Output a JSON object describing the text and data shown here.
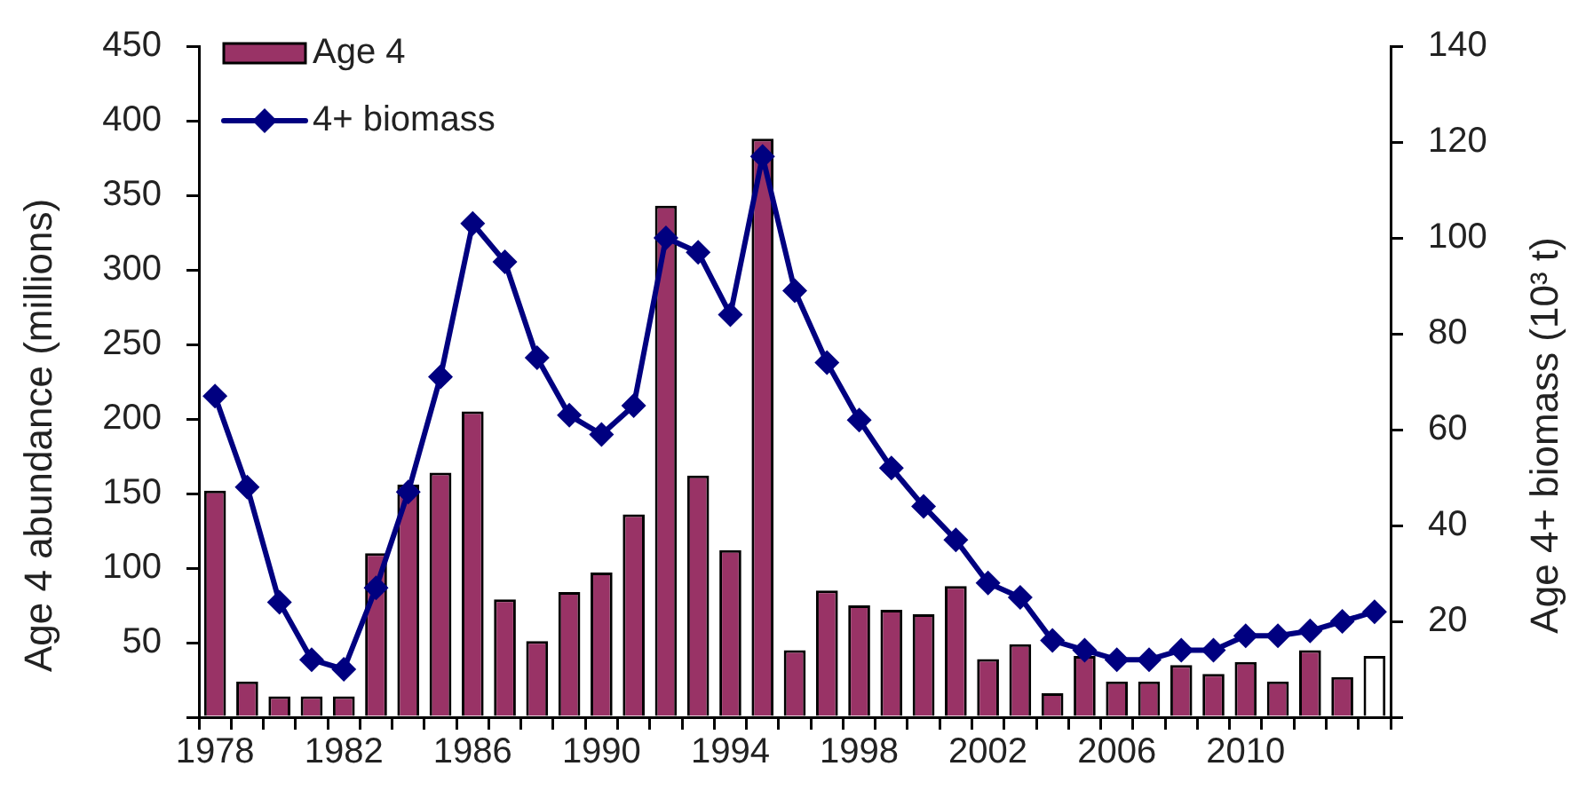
{
  "chart_data": {
    "type": "bar",
    "categories": [
      "1978",
      null,
      null,
      null,
      "1982",
      null,
      null,
      null,
      "1986",
      null,
      null,
      null,
      "1990",
      null,
      null,
      null,
      "1994",
      null,
      null,
      null,
      "1998",
      null,
      null,
      null,
      "2002",
      null,
      null,
      null,
      "2006",
      null,
      null,
      null,
      "2010",
      null,
      null,
      null,
      null
    ],
    "ylabel": "Age 4 abundance (millions)",
    "y2label": "Age 4+ biomass (10³ t)",
    "ylim": [
      0,
      450
    ],
    "yticks": [
      {
        "value": 0,
        "label": null
      },
      50,
      100,
      150,
      200,
      250,
      300,
      350,
      400,
      450
    ],
    "y2lim": [
      0,
      140
    ],
    "y2ticks": [
      {
        "value": 0,
        "label": null
      },
      20,
      40,
      60,
      80,
      100,
      120,
      140
    ],
    "series": [
      {
        "name": "Age 4",
        "colors": [
          "#993366",
          "#993366",
          "#993366",
          "#993366",
          "#993366",
          "#993366",
          "#993366",
          "#993366",
          "#993366",
          "#993366",
          "#993366",
          "#993366",
          "#993366",
          "#993366",
          "#993366",
          "#993366",
          "#993366",
          "#993366",
          "#993366",
          "#993366",
          "#993366",
          "#993366",
          "#993366",
          "#993366",
          "#993366",
          "#993366",
          "#993366",
          "#993366",
          "#993366",
          "#993366",
          "#993366",
          "#993366",
          "#993366",
          "#993366",
          "#993366",
          "#993366",
          "#ffffff"
        ],
        "values": [
          152,
          24,
          14,
          14,
          14,
          110,
          156,
          164,
          205,
          79,
          51,
          84,
          97,
          136,
          343,
          162,
          112,
          388,
          45,
          85,
          75,
          72,
          69,
          88,
          39,
          49,
          16,
          41,
          24,
          24,
          35,
          29,
          37,
          24,
          45,
          27,
          41
        ]
      },
      {
        "name": "4+ biomass",
        "type": "line",
        "axis": "y2",
        "color": "#000080",
        "marker": "diamond",
        "line_style": "solid",
        "values": [
          67,
          48,
          24,
          12,
          10,
          27,
          47,
          71,
          103,
          95,
          75,
          63,
          59,
          65,
          100,
          97,
          84,
          117,
          89,
          74,
          62,
          52,
          44,
          37,
          28,
          25,
          16,
          14,
          12,
          12,
          14,
          14,
          17,
          17,
          18,
          20,
          22
        ]
      }
    ],
    "legend": "top left",
    "grid": false
  }
}
